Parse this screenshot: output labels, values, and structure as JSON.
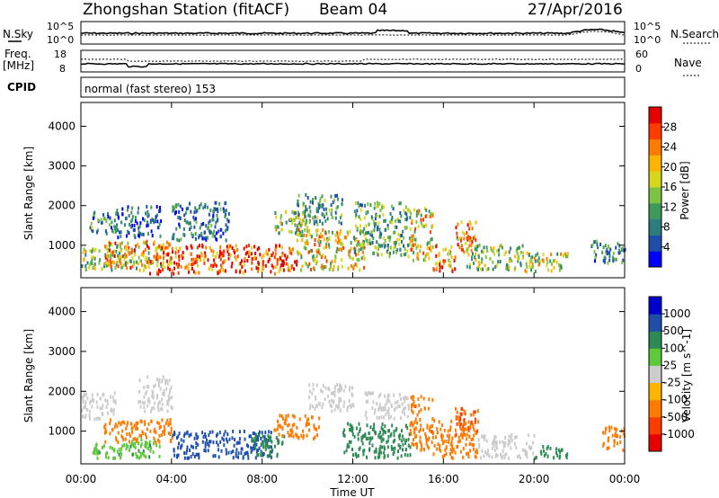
{
  "header": {
    "title": "Zhongshan Station (fitACF)",
    "beam": "Beam 04",
    "date": "27/Apr/2016"
  },
  "noise_panel": {
    "left_label": "N.Sky",
    "left_ticks": [
      "10^5",
      "10^0"
    ],
    "right_ticks": [
      "10^5",
      "10^0"
    ],
    "right_label": "N.Search"
  },
  "freq_panel": {
    "left_label_top": "Freq.",
    "left_label_bottom": "[MHz]",
    "left_ticks": [
      "18",
      "8"
    ],
    "right_ticks": [
      "60",
      "0"
    ],
    "right_label": "Nave"
  },
  "cpid": {
    "label": "CPID",
    "value": "normal (fast stereo) 153"
  },
  "chart_data": [
    {
      "type": "heatmap",
      "name": "power",
      "ylabel": "Slant Range [km]",
      "ylim": [
        180,
        4600
      ],
      "yticks": [
        1000,
        2000,
        3000,
        4000
      ],
      "colorbar": {
        "label": "Power [dB]",
        "ticks": [
          "28",
          "24",
          "20",
          "16",
          "12",
          "8",
          "4"
        ],
        "colors": [
          "#0000ff",
          "#1f4fa8",
          "#2e7d7d",
          "#3e9a5a",
          "#7dc242",
          "#d8d71f",
          "#ffb400",
          "#ff7a00",
          "#ff3c00",
          "#e60000"
        ]
      },
      "clusters": [
        {
          "t": [
            0.3,
            1.5
          ],
          "r": [
            1300,
            1850
          ],
          "v": 9
        },
        {
          "t": [
            0.0,
            3.0
          ],
          "r": [
            350,
            900
          ],
          "v": 14
        },
        {
          "t": [
            1.0,
            4.0
          ],
          "r": [
            400,
            1100
          ],
          "v": 20
        },
        {
          "t": [
            1.5,
            3.5
          ],
          "r": [
            1200,
            2000
          ],
          "v": 6
        },
        {
          "t": [
            3.0,
            9.5
          ],
          "r": [
            250,
            1000
          ],
          "v": 26
        },
        {
          "t": [
            4.0,
            6.5
          ],
          "r": [
            1100,
            2100
          ],
          "v": 7
        },
        {
          "t": [
            8.5,
            10.0
          ],
          "r": [
            1300,
            1900
          ],
          "v": 14
        },
        {
          "t": [
            9.5,
            12.5
          ],
          "r": [
            350,
            1400
          ],
          "v": 18
        },
        {
          "t": [
            9.5,
            11.5
          ],
          "r": [
            1500,
            2300
          ],
          "v": 10
        },
        {
          "t": [
            12.0,
            14.5
          ],
          "r": [
            700,
            2100
          ],
          "v": 11
        },
        {
          "t": [
            14.5,
            15.5
          ],
          "r": [
            600,
            2000
          ],
          "v": 18
        },
        {
          "t": [
            15.5,
            16.5
          ],
          "r": [
            300,
            1000
          ],
          "v": 22
        },
        {
          "t": [
            16.5,
            17.5
          ],
          "r": [
            800,
            1600
          ],
          "v": 22
        },
        {
          "t": [
            17.0,
            19.5
          ],
          "r": [
            350,
            1000
          ],
          "v": 13
        },
        {
          "t": [
            19.5,
            21.5
          ],
          "r": [
            300,
            800
          ],
          "v": 16
        },
        {
          "t": [
            22.5,
            24.0
          ],
          "r": [
            500,
            1100
          ],
          "v": 8
        }
      ]
    },
    {
      "type": "heatmap",
      "name": "velocity",
      "ylabel": "Slant Range [km]",
      "ylim": [
        180,
        4600
      ],
      "yticks": [
        1000,
        2000,
        3000,
        4000
      ],
      "colorbar": {
        "label": "Velocity [m s^-1]",
        "ticks": [
          "1000",
          "500",
          "100",
          "25",
          "-25",
          "-100",
          "-500",
          "-1000"
        ],
        "colors": [
          "#e60000",
          "#ff3c00",
          "#ff7a00",
          "#ffb400",
          "#cccccc",
          "#5ec83b",
          "#2e8a55",
          "#1f4fa8",
          "#0000cc"
        ]
      },
      "clusters": [
        {
          "t": [
            0.0,
            1.5
          ],
          "r": [
            1300,
            2000
          ],
          "v": -10
        },
        {
          "t": [
            0.5,
            3.5
          ],
          "r": [
            300,
            800
          ],
          "v": 80
        },
        {
          "t": [
            1.0,
            4.0
          ],
          "r": [
            700,
            1300
          ],
          "v": -200
        },
        {
          "t": [
            2.5,
            4.0
          ],
          "r": [
            1500,
            2400
          ],
          "v": -10
        },
        {
          "t": [
            4.0,
            8.5
          ],
          "r": [
            300,
            1000
          ],
          "v": 700
        },
        {
          "t": [
            7.5,
            9.0
          ],
          "r": [
            350,
            900
          ],
          "v": 300
        },
        {
          "t": [
            8.5,
            10.5
          ],
          "r": [
            800,
            1400
          ],
          "v": -200
        },
        {
          "t": [
            10.0,
            12.0
          ],
          "r": [
            1500,
            2200
          ],
          "v": -10
        },
        {
          "t": [
            11.5,
            14.5
          ],
          "r": [
            300,
            1200
          ],
          "v": 200
        },
        {
          "t": [
            12.5,
            14.5
          ],
          "r": [
            1300,
            2000
          ],
          "v": -10
        },
        {
          "t": [
            14.5,
            15.5
          ],
          "r": [
            500,
            1900
          ],
          "v": -400
        },
        {
          "t": [
            15.5,
            17.5
          ],
          "r": [
            300,
            1300
          ],
          "v": -350
        },
        {
          "t": [
            16.5,
            17.5
          ],
          "r": [
            900,
            1600
          ],
          "v": -500
        },
        {
          "t": [
            17.5,
            20.0
          ],
          "r": [
            300,
            900
          ],
          "v": -10
        },
        {
          "t": [
            20.0,
            21.5
          ],
          "r": [
            300,
            600
          ],
          "v": 150
        },
        {
          "t": [
            23.0,
            24.0
          ],
          "r": [
            500,
            1100
          ],
          "v": -200
        }
      ]
    }
  ],
  "x_axis": {
    "ticks": [
      "00:00",
      "04:00",
      "08:00",
      "12:00",
      "16:00",
      "20:00",
      "00:00"
    ],
    "label": "Time UT"
  }
}
